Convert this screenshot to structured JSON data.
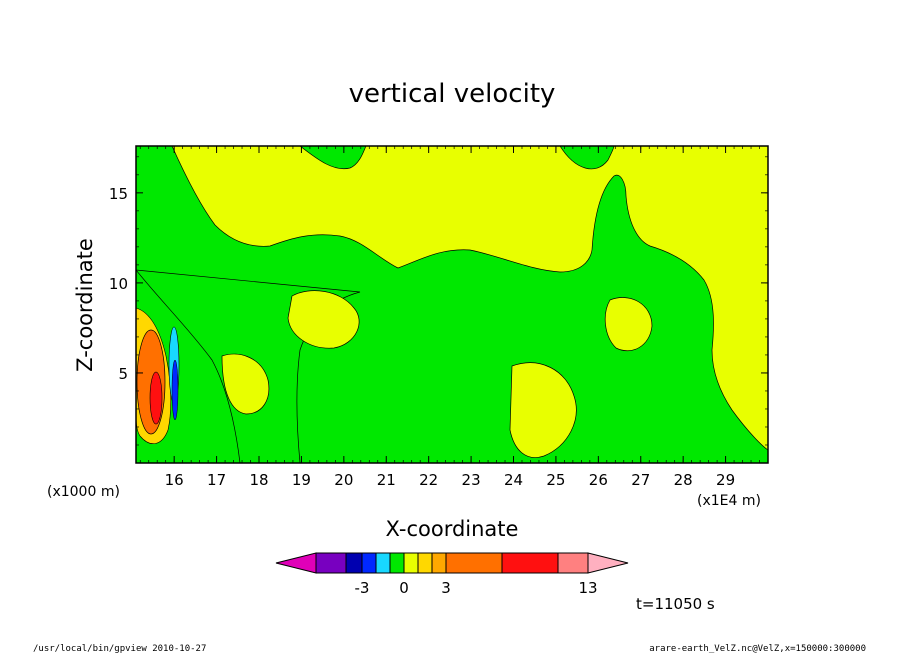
{
  "chart_data": {
    "type": "heatmap",
    "title": "vertical velocity",
    "xlabel": "X-coordinate",
    "ylabel": "Z-coordinate",
    "x_unit": "(x1E4 m)",
    "y_unit": "(x1000 m)",
    "xlim": [
      15.1,
      30.0
    ],
    "ylim": [
      0.0,
      17.6
    ],
    "x_ticks": [
      "16",
      "17",
      "18",
      "19",
      "20",
      "21",
      "22",
      "23",
      "24",
      "25",
      "26",
      "27",
      "28",
      "29"
    ],
    "y_ticks": [
      "5",
      "10",
      "15"
    ],
    "grid": false,
    "colorbar": {
      "colors": [
        "#e000b8",
        "#7800c0",
        "#0000b0",
        "#0028ff",
        "#18d8ff",
        "#00e800",
        "#e8ff00",
        "#ffd800",
        "#ffa800",
        "#ff7000",
        "#ff1010",
        "#ff8080",
        "#ffb0c0"
      ],
      "tick_labels": [
        "-3",
        "0",
        "3",
        "13"
      ]
    },
    "regions": [
      {
        "name": "positive-region",
        "color": "#e8ff00"
      },
      {
        "name": "near-zero-region",
        "color": "#00e800"
      },
      {
        "name": "updraft-core",
        "color": "#ff7000"
      },
      {
        "name": "downdraft-core",
        "color": "#0028ff"
      }
    ]
  },
  "annotations": {
    "time": "t=11050 s",
    "footer_left": "/usr/local/bin/gpview   2010-10-27",
    "footer_right": "arare-earth_VelZ.nc@VelZ,x=150000:300000"
  }
}
